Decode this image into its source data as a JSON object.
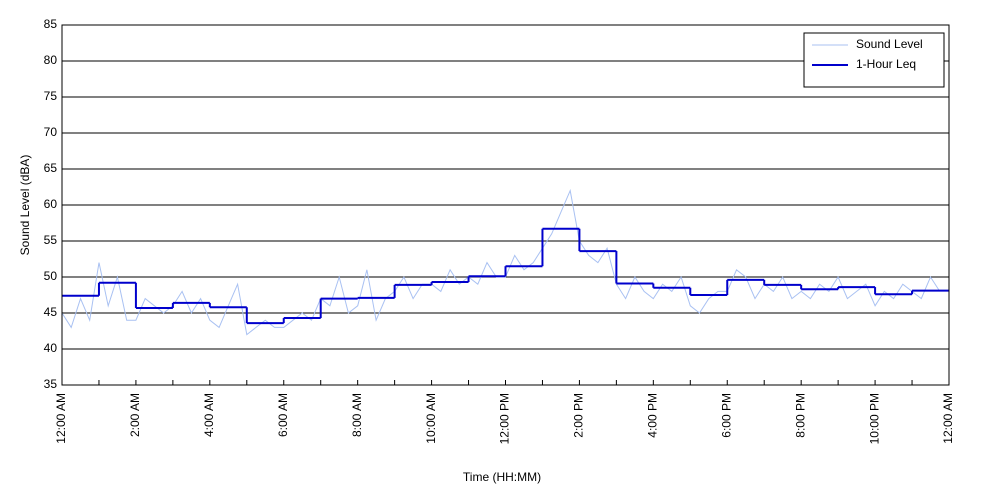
{
  "chart_data": {
    "type": "line",
    "xlabel": "Time (HH:MM)",
    "ylabel": "Sound Level (dBA)",
    "xlim": [
      0,
      24
    ],
    "ylim": [
      35,
      85
    ],
    "xticks": [
      {
        "value": 0,
        "label": "12:00 AM"
      },
      {
        "value": 2,
        "label": "2:00 AM"
      },
      {
        "value": 4,
        "label": "4:00 AM"
      },
      {
        "value": 6,
        "label": "6:00 AM"
      },
      {
        "value": 8,
        "label": "8:00 AM"
      },
      {
        "value": 10,
        "label": "10:00 AM"
      },
      {
        "value": 12,
        "label": "12:00 PM"
      },
      {
        "value": 14,
        "label": "2:00 PM"
      },
      {
        "value": 16,
        "label": "4:00 PM"
      },
      {
        "value": 18,
        "label": "6:00 PM"
      },
      {
        "value": 20,
        "label": "8:00 PM"
      },
      {
        "value": 22,
        "label": "10:00 PM"
      },
      {
        "value": 24,
        "label": "12:00 AM"
      }
    ],
    "xminorticks": [
      1,
      3,
      5,
      7,
      9,
      11,
      13,
      15,
      17,
      19,
      21,
      23
    ],
    "yticks": [
      35,
      40,
      45,
      50,
      55,
      60,
      65,
      70,
      75,
      80,
      85
    ],
    "grid": true,
    "legend": "upper right",
    "series": [
      {
        "name": "Sound Level",
        "color": "#a9c1f2",
        "step": false,
        "x": [
          0,
          0.25,
          0.5,
          0.75,
          1,
          1.25,
          1.5,
          1.75,
          2,
          2.25,
          2.5,
          2.75,
          3,
          3.25,
          3.5,
          3.75,
          4,
          4.25,
          4.5,
          4.75,
          5,
          5.25,
          5.5,
          5.75,
          6,
          6.25,
          6.5,
          6.75,
          7,
          7.25,
          7.5,
          7.75,
          8,
          8.25,
          8.5,
          8.75,
          9,
          9.25,
          9.5,
          9.75,
          10,
          10.25,
          10.5,
          10.75,
          11,
          11.25,
          11.5,
          11.75,
          12,
          12.25,
          12.5,
          12.75,
          13,
          13.25,
          13.5,
          13.75,
          14,
          14.25,
          14.5,
          14.75,
          15,
          15.25,
          15.5,
          15.75,
          16,
          16.25,
          16.5,
          16.75,
          17,
          17.25,
          17.5,
          17.75,
          18,
          18.25,
          18.5,
          18.75,
          19,
          19.25,
          19.5,
          19.75,
          20,
          20.25,
          20.5,
          20.75,
          21,
          21.25,
          21.5,
          21.75,
          22,
          22.25,
          22.5,
          22.75,
          23,
          23.25,
          23.5,
          23.75
        ],
        "values": [
          45,
          43,
          47,
          44,
          52,
          46,
          50,
          44,
          44,
          47,
          46,
          45,
          46,
          48,
          45,
          47,
          44,
          43,
          46,
          49,
          42,
          43,
          44,
          43,
          43,
          44,
          45,
          44,
          47,
          46,
          50,
          45,
          46,
          51,
          44,
          47,
          48,
          50,
          47,
          49,
          49,
          48,
          51,
          49,
          50,
          49,
          52,
          50,
          50,
          53,
          51,
          52,
          54,
          56,
          59,
          62,
          55,
          53,
          52,
          54,
          49,
          47,
          50,
          48,
          47,
          49,
          48,
          50,
          46,
          45,
          47,
          48,
          48,
          51,
          50,
          47,
          49,
          48,
          50,
          47,
          48,
          47,
          49,
          48,
          50,
          47,
          48,
          49,
          46,
          48,
          47,
          49,
          48,
          47,
          50,
          48
        ]
      },
      {
        "name": "1-Hour Leq",
        "color": "#0000cc",
        "step": true,
        "x": [
          0,
          1,
          2,
          3,
          4,
          5,
          6,
          7,
          8,
          9,
          10,
          11,
          12,
          13,
          14,
          15,
          16,
          17,
          18,
          19,
          20,
          21,
          22,
          23
        ],
        "values": [
          47.4,
          49.2,
          45.7,
          46.4,
          45.8,
          43.6,
          44.3,
          47.0,
          47.1,
          48.9,
          49.3,
          50.1,
          51.5,
          56.7,
          53.6,
          49.1,
          48.5,
          47.5,
          49.6,
          48.9,
          48.3,
          48.6,
          47.6,
          48.1
        ]
      }
    ]
  }
}
